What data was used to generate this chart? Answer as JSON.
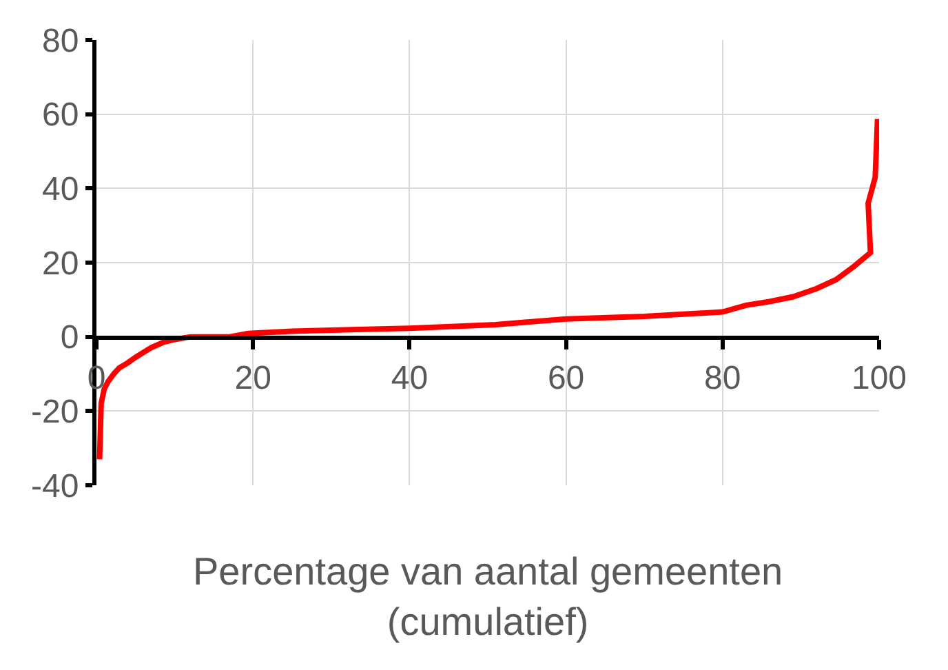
{
  "chart_data": {
    "type": "line",
    "xlabel": "Percentage van aantal gemeenten\n(cumulatief)",
    "x": [
      0.4,
      0.6,
      1,
      1.5,
      2.2,
      2.9,
      4,
      5,
      7,
      8.5,
      10,
      12,
      17,
      19.4,
      25,
      30,
      40,
      51,
      60,
      70,
      80,
      83,
      86,
      89,
      92,
      94.5,
      96.8,
      98.9,
      98.6,
      99.5,
      99.8
    ],
    "series": [
      {
        "color": "#ff0000",
        "values": [
          -33,
          -18,
          -14,
          -12,
          -10,
          -8.4,
          -7,
          -5.5,
          -2.9,
          -1.5,
          -0.7,
          0,
          0,
          0.9,
          1.5,
          1.8,
          2.3,
          3.3,
          4.8,
          5.5,
          6.7,
          8.5,
          9.5,
          10.8,
          13,
          15.4,
          19,
          22.7,
          36,
          43,
          58.7
        ]
      }
    ],
    "xlim": [
      0,
      100
    ],
    "xticks": [
      0,
      20,
      40,
      60,
      80,
      100
    ],
    "ylim": [
      -40,
      80
    ],
    "yticks": [
      -40,
      -20,
      0,
      20,
      40,
      60,
      80
    ],
    "grid": true,
    "marker": "none",
    "line_style": "solid"
  }
}
